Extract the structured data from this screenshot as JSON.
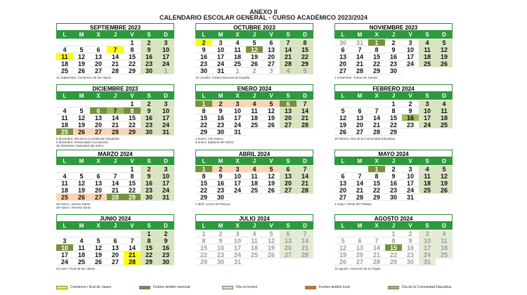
{
  "header": {
    "title": "ANEXO II",
    "subtitle": "CALENDARIO ESCOLAR GENERAL - CURSO ACADÉMICO 2023/2024"
  },
  "weekdays": [
    "L",
    "M",
    "X",
    "J",
    "V",
    "S",
    "D"
  ],
  "legend": [
    {
      "kind": "start",
      "color": "#ffff00",
      "label": "Comienzo / final de clases"
    },
    {
      "kind": "national",
      "color": "#76923c",
      "label": "Festivo ámbito nacional"
    },
    {
      "kind": "off",
      "color": "#fbd4b4",
      "label": "Día no lectivo"
    },
    {
      "kind": "local",
      "color": "#e46c0a",
      "label": "Festivo ámbito local"
    },
    {
      "kind": "community",
      "color": "#9bbb59",
      "label": "Día de la Comunidad Educativa"
    }
  ],
  "months": [
    {
      "name": "SEPTIEMBRE 2023",
      "weeks": [
        [
          null,
          null,
          null,
          null,
          1,
          2,
          3
        ],
        [
          4,
          5,
          6,
          {
            "day": 7,
            "kind": "start"
          },
          8,
          9,
          10
        ],
        [
          {
            "day": 11,
            "kind": "start"
          },
          12,
          13,
          14,
          15,
          16,
          17
        ],
        [
          18,
          19,
          20,
          21,
          22,
          23,
          24
        ],
        [
          25,
          26,
          27,
          28,
          29,
          30,
          {
            "day": 1,
            "kind": "out"
          }
        ]
      ],
      "notes": [
        "11 septiembre: Comienzo de las clases"
      ]
    },
    {
      "name": "OCTUBRE 2023",
      "weeks": [
        [
          {
            "day": 2,
            "kind": "start"
          },
          3,
          4,
          5,
          6,
          7,
          8
        ],
        [
          9,
          10,
          11,
          {
            "day": 12,
            "kind": "national"
          },
          13,
          14,
          15
        ],
        [
          16,
          17,
          18,
          19,
          20,
          21,
          22
        ],
        [
          23,
          24,
          25,
          26,
          27,
          28,
          29
        ],
        [
          30,
          31,
          {
            "day": 1,
            "kind": "out"
          },
          {
            "day": 2,
            "kind": "out"
          },
          {
            "day": 3,
            "kind": "out"
          },
          {
            "day": 4,
            "kind": "out"
          },
          {
            "day": 5,
            "kind": "out"
          }
        ]
      ],
      "notes": [
        "12 octubre: Fiesta Nacional de España"
      ]
    },
    {
      "name": "NOVIEMBRE 2023",
      "weeks": [
        [
          {
            "day": 30,
            "kind": "out"
          },
          {
            "day": 31,
            "kind": "out"
          },
          {
            "day": 1,
            "kind": "national"
          },
          2,
          3,
          4,
          5
        ],
        [
          6,
          7,
          8,
          9,
          10,
          11,
          12
        ],
        [
          13,
          14,
          15,
          16,
          17,
          18,
          19
        ],
        [
          20,
          21,
          22,
          23,
          24,
          25,
          26
        ],
        [
          27,
          28,
          29,
          30
        ]
      ],
      "notes": [
        "1 noviembre: Todos los Santos"
      ]
    },
    {
      "name": "DICIEMBRE 2023",
      "weeks": [
        [
          null,
          null,
          null,
          null,
          1,
          2,
          3
        ],
        [
          4,
          5,
          {
            "day": 6,
            "kind": "national"
          },
          {
            "day": 7,
            "kind": "community"
          },
          {
            "day": 8,
            "kind": "national"
          },
          9,
          10
        ],
        [
          11,
          12,
          13,
          14,
          15,
          16,
          17
        ],
        [
          18,
          19,
          20,
          21,
          22,
          23,
          24
        ],
        [
          {
            "day": 25,
            "kind": "national"
          },
          {
            "day": 26,
            "kind": "off"
          },
          {
            "day": 27,
            "kind": "off"
          },
          {
            "day": 28,
            "kind": "off"
          },
          {
            "day": 29,
            "kind": "off"
          },
          30,
          31
        ]
      ],
      "notes": [
        "6 diciembre: Día de la Constitución Española",
        "8 diciembre: Inmaculada Concepción",
        "25 diciembre: Natividad del Señor"
      ]
    },
    {
      "name": "ENERO 2024",
      "weeks": [
        [
          {
            "day": 1,
            "kind": "national"
          },
          {
            "day": 2,
            "kind": "off"
          },
          {
            "day": 3,
            "kind": "off"
          },
          {
            "day": 4,
            "kind": "off"
          },
          {
            "day": 5,
            "kind": "off"
          },
          {
            "day": 6,
            "kind": "national"
          },
          7
        ],
        [
          8,
          9,
          10,
          11,
          12,
          13,
          14
        ],
        [
          15,
          16,
          17,
          18,
          19,
          20,
          21
        ],
        [
          22,
          23,
          24,
          25,
          26,
          27,
          28
        ],
        [
          29,
          30,
          31
        ]
      ],
      "notes": [
        "1 enero: Año Nuevo",
        "6 enero: Epifanía del Señor"
      ]
    },
    {
      "name": "FEBRERO 2024",
      "weeks": [
        [
          null,
          null,
          null,
          1,
          2,
          3,
          4
        ],
        [
          5,
          6,
          7,
          8,
          9,
          10,
          11
        ],
        [
          12,
          13,
          14,
          15,
          {
            "day": 16,
            "kind": "community"
          },
          17,
          18
        ],
        [
          19,
          20,
          21,
          22,
          23,
          24,
          25
        ],
        [
          26,
          27,
          28,
          29
        ]
      ],
      "notes": [
        "16 febrero: Día de la Comunidad Educativa"
      ]
    },
    {
      "name": "MARZO 2024",
      "weeks": [
        [
          null,
          null,
          null,
          null,
          1,
          2,
          3
        ],
        [
          4,
          5,
          6,
          7,
          8,
          9,
          10
        ],
        [
          11,
          12,
          13,
          14,
          15,
          16,
          17
        ],
        [
          18,
          19,
          20,
          21,
          22,
          23,
          24
        ],
        [
          {
            "day": 25,
            "kind": "off"
          },
          {
            "day": 26,
            "kind": "off"
          },
          {
            "day": 27,
            "kind": "off"
          },
          {
            "day": 28,
            "kind": "national"
          },
          {
            "day": 29,
            "kind": "national"
          },
          30,
          31
        ]
      ],
      "notes": [
        "28 marzo: Jueves Santo",
        "29 marzo: Viernes Santo"
      ]
    },
    {
      "name": "ABRIL 2024",
      "weeks": [
        [
          {
            "day": 1,
            "kind": "national"
          },
          {
            "day": 2,
            "kind": "off"
          },
          {
            "day": 3,
            "kind": "off"
          },
          {
            "day": 4,
            "kind": "off"
          },
          {
            "day": 5,
            "kind": "off"
          },
          6,
          7
        ],
        [
          8,
          9,
          10,
          11,
          12,
          13,
          14
        ],
        [
          15,
          16,
          17,
          18,
          19,
          20,
          21
        ],
        [
          22,
          23,
          24,
          25,
          26,
          27,
          28
        ],
        [
          29,
          30
        ]
      ],
      "notes": [
        "1 abril: Lunes de Pascua"
      ]
    },
    {
      "name": "MAYO 2024",
      "weeks": [
        [
          null,
          null,
          {
            "day": 1,
            "kind": "national"
          },
          2,
          3,
          4,
          5
        ],
        [
          6,
          7,
          8,
          9,
          10,
          11,
          12
        ],
        [
          13,
          14,
          15,
          16,
          17,
          18,
          19
        ],
        [
          20,
          21,
          22,
          23,
          24,
          25,
          26
        ],
        [
          27,
          28,
          29,
          30,
          31
        ]
      ],
      "notes": [
        "1 mayo: Fiesta del Trabajo"
      ]
    },
    {
      "name": "JUNIO 2024",
      "weeks": [
        [
          null,
          null,
          null,
          null,
          null,
          1,
          2
        ],
        [
          3,
          4,
          5,
          6,
          7,
          8,
          9
        ],
        [
          {
            "day": 10,
            "kind": "national"
          },
          11,
          12,
          13,
          14,
          15,
          16
        ],
        [
          17,
          18,
          19,
          20,
          {
            "day": 21,
            "kind": "start"
          },
          22,
          23
        ],
        [
          24,
          25,
          26,
          27,
          {
            "day": 28,
            "kind": "start"
          },
          29,
          30
        ]
      ],
      "notes": [
        "21 junio: Final de las clases"
      ]
    },
    {
      "name": "JULIO 2024",
      "weeks": [
        [
          1,
          2,
          3,
          4,
          5,
          6,
          7
        ],
        [
          8,
          9,
          10,
          11,
          12,
          13,
          14
        ],
        [
          15,
          16,
          17,
          18,
          19,
          20,
          21
        ],
        [
          22,
          23,
          24,
          25,
          26,
          27,
          28
        ],
        [
          29,
          30,
          31
        ]
      ],
      "notes": []
    },
    {
      "name": "AGOSTO 2024",
      "weeks": [
        [
          null,
          null,
          null,
          1,
          2,
          3,
          4
        ],
        [
          5,
          6,
          7,
          8,
          9,
          10,
          11
        ],
        [
          12,
          13,
          14,
          {
            "day": 15,
            "kind": "national"
          },
          16,
          17,
          18
        ],
        [
          19,
          20,
          21,
          22,
          23,
          24,
          25
        ],
        [
          26,
          27,
          28,
          29,
          30,
          31
        ]
      ],
      "notes": [
        "15 agosto: Asunción de la Virgen"
      ]
    }
  ]
}
